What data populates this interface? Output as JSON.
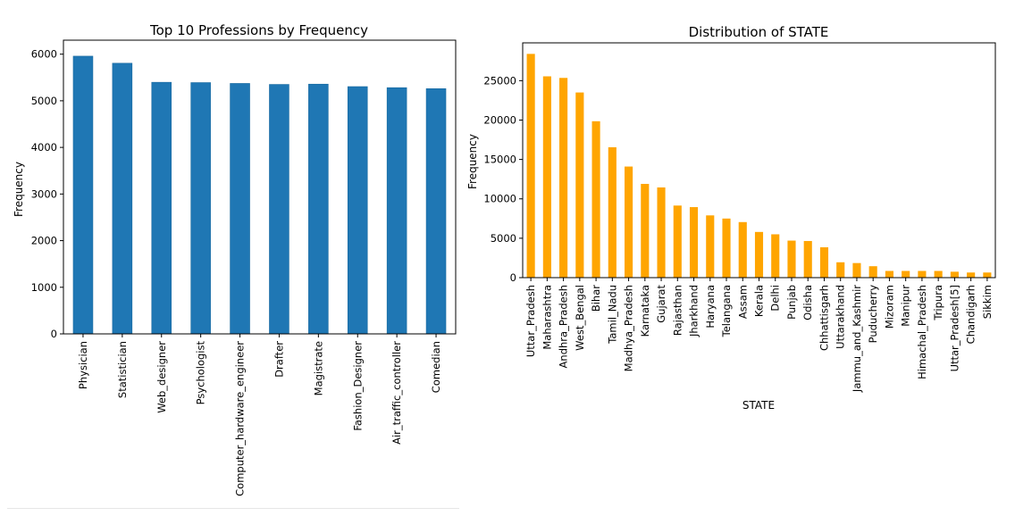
{
  "chart_data": [
    {
      "type": "bar",
      "title": "Top 10 Professions by Frequency",
      "xlabel": "",
      "ylabel": "Frequency",
      "ylim": [
        0,
        6300
      ],
      "yticks": [
        0,
        1000,
        2000,
        3000,
        4000,
        5000,
        6000
      ],
      "bar_color": "#1f77b4",
      "grid": false,
      "categories": [
        "Physician",
        "Statistician",
        "Web_designer",
        "Psychologist",
        "Computer_hardware_engineer",
        "Drafter",
        "Magistrate",
        "Fashion_Designer",
        "Air_traffic_controller",
        "Comedian"
      ],
      "values": [
        5957,
        5806,
        5397,
        5390,
        5372,
        5351,
        5357,
        5304,
        5281,
        5260
      ]
    },
    {
      "type": "bar",
      "title": "Distribution of STATE",
      "xlabel": "STATE",
      "ylabel": "Frequency",
      "ylim": [
        0,
        29800
      ],
      "yticks": [
        0,
        5000,
        10000,
        15000,
        20000,
        25000
      ],
      "bar_color": "#ffa500",
      "grid": false,
      "categories": [
        "Uttar_Pradesh",
        "Maharashtra",
        "Andhra_Pradesh",
        "West_Bengal",
        "Bihar",
        "Tamil_Nadu",
        "Madhya_Pradesh",
        "Karnataka",
        "Gujarat",
        "Rajasthan",
        "Jharkhand",
        "Haryana",
        "Telangana",
        "Assam",
        "Kerala",
        "Delhi",
        "Punjab",
        "Odisha",
        "Chhattisgarh",
        "Uttarakhand",
        "Jammu_and_Kashmir",
        "Puducherry",
        "Mizoram",
        "Manipur",
        "Himachal_Pradesh",
        "Tripura",
        "Uttar_Pradesh[5]",
        "Chandigarh",
        "Sikkim"
      ],
      "values": [
        28400,
        25550,
        25350,
        23500,
        19850,
        16550,
        14100,
        11900,
        11450,
        9150,
        8950,
        7900,
        7500,
        7050,
        5800,
        5500,
        4700,
        4650,
        3850,
        1950,
        1850,
        1450,
        850,
        850,
        850,
        850,
        750,
        650,
        650
      ]
    }
  ]
}
